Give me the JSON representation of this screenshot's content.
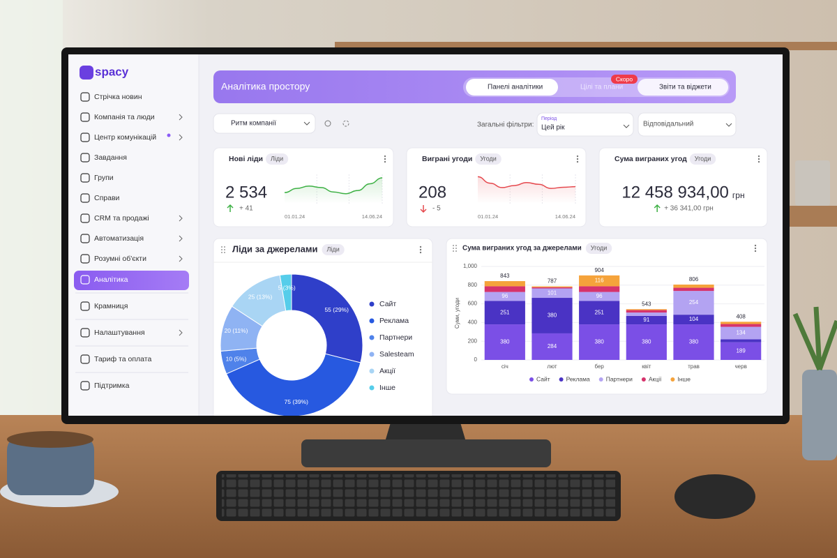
{
  "sidebar": {
    "logo": "spacy",
    "items": [
      "Стрічка новин",
      "Компанія та люди",
      "Центр комунікацій",
      "Завдання",
      "Групи",
      "Справи",
      "CRM та продажі",
      "Автоматизація",
      "Розумні об'єкти",
      "Аналітика",
      "Крамниця",
      "Налаштування",
      "Тариф та оплата",
      "Підтримка"
    ]
  },
  "header": {
    "title": "Аналітика простору",
    "tabs": [
      "Панелі аналітики",
      "Цілі та плани",
      "Звіти та віджети"
    ],
    "badge": "Скоро"
  },
  "filters": {
    "dashboard": "Ритм компанії",
    "label": "Загальні фільтри:",
    "period_label": "Період",
    "period": "Цей рік",
    "owner": "Відповідальний"
  },
  "kpis": [
    {
      "title": "Нові ліди",
      "tag": "Ліди",
      "value": "2 534",
      "delta": "+ 41",
      "trend": "up",
      "color": "#3cb043",
      "x_labels": [
        "01.01.24",
        "14.06.24"
      ],
      "ylim": [
        0,
        100
      ],
      "spark": [
        38,
        52,
        60,
        55,
        40,
        34,
        45,
        68,
        88
      ]
    },
    {
      "title": "Виграні угоди",
      "tag": "Угоди",
      "value": "208",
      "delta": "- 5",
      "trend": "down",
      "color": "#e5484d",
      "x_labels": [
        "01.01.24",
        "14.06.24"
      ],
      "ylim": [
        0,
        100
      ],
      "spark": [
        92,
        70,
        55,
        62,
        72,
        66,
        52,
        56,
        58
      ]
    },
    {
      "title": "Сума виграних угод",
      "tag": "Угоди",
      "value": "12 458 934,00",
      "unit": "грн",
      "delta": "+ 36 341,00 грн",
      "trend": "up",
      "color": "#3cb043"
    }
  ],
  "chart_data": [
    {
      "type": "pie",
      "title": "Ліди за джерелами",
      "tag": "Ліди",
      "categories": [
        "Сайт",
        "Реклама",
        "Партнери",
        "Salesteam",
        "Акції",
        "Інше"
      ],
      "values": [
        55,
        75,
        10,
        20,
        25,
        5
      ],
      "value_labels": [
        "55 (29%)",
        "75 (39%)",
        "10 (5%)",
        "20 (11%)",
        "25 (13%)",
        "5 (3%)"
      ],
      "colors": [
        "#2f3fc9",
        "#2759e0",
        "#4f82ea",
        "#8fb3f3",
        "#a9d5f4",
        "#56cdea"
      ]
    },
    {
      "type": "bar",
      "stacked": true,
      "title": "Сума виграних угод за джерелами",
      "tag": "Угоди",
      "categories": [
        "січ",
        "лют",
        "бер",
        "квіт",
        "трав",
        "черв"
      ],
      "series": [
        {
          "name": "Сайт",
          "color": "#7b4fe6",
          "values": [
            380,
            284,
            380,
            380,
            380,
            189
          ]
        },
        {
          "name": "Реклама",
          "color": "#4a33c4",
          "values": [
            251,
            380,
            251,
            91,
            104,
            31
          ]
        },
        {
          "name": "Партнери",
          "color": "#b3a3f2",
          "values": [
            96,
            101,
            96,
            36,
            254,
            134
          ]
        },
        {
          "name": "Акції",
          "color": "#d6336c",
          "values": [
            61,
            12,
            61,
            26,
            34,
            30
          ]
        },
        {
          "name": "Інше",
          "color": "#f5a33b",
          "values": [
            55,
            10,
            116,
            10,
            34,
            24
          ]
        }
      ],
      "totals": [
        843,
        787,
        904,
        543,
        806,
        408
      ],
      "ylabel": "Суми, угоди",
      "ylim": [
        0,
        1000
      ],
      "yticks": [
        0,
        200,
        400,
        600,
        800,
        {
          "value": 1000,
          "label": "1,000"
        }
      ],
      "grid": true,
      "legend": "bottom"
    }
  ]
}
